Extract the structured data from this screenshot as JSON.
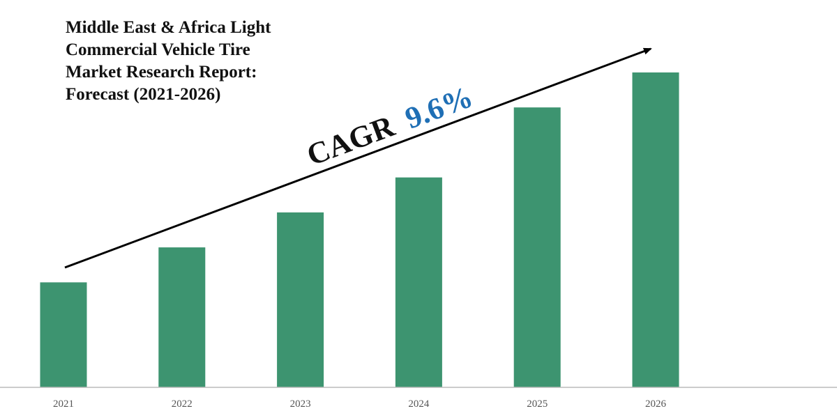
{
  "chart_data": {
    "type": "bar",
    "title_lines": [
      "Middle East & Africa Light",
      "Commercial Vehicle Tire",
      "Market Research Report:",
      "Forecast (2021-2026)"
    ],
    "categories": [
      "2021",
      "2022",
      "2023",
      "2024",
      "2025",
      "2026"
    ],
    "values": [
      150,
      200,
      250,
      300,
      400,
      450
    ],
    "ylim": [
      0,
      500
    ],
    "annotation": {
      "label": "CAGR",
      "value": "9.6%"
    },
    "grid": false,
    "legend": "none",
    "colors": {
      "bar": "#3d9470",
      "axis": "#bbbbbb",
      "arrow": "#000000",
      "annotation_label": "#111111",
      "annotation_value": "#1f6fb5"
    }
  }
}
